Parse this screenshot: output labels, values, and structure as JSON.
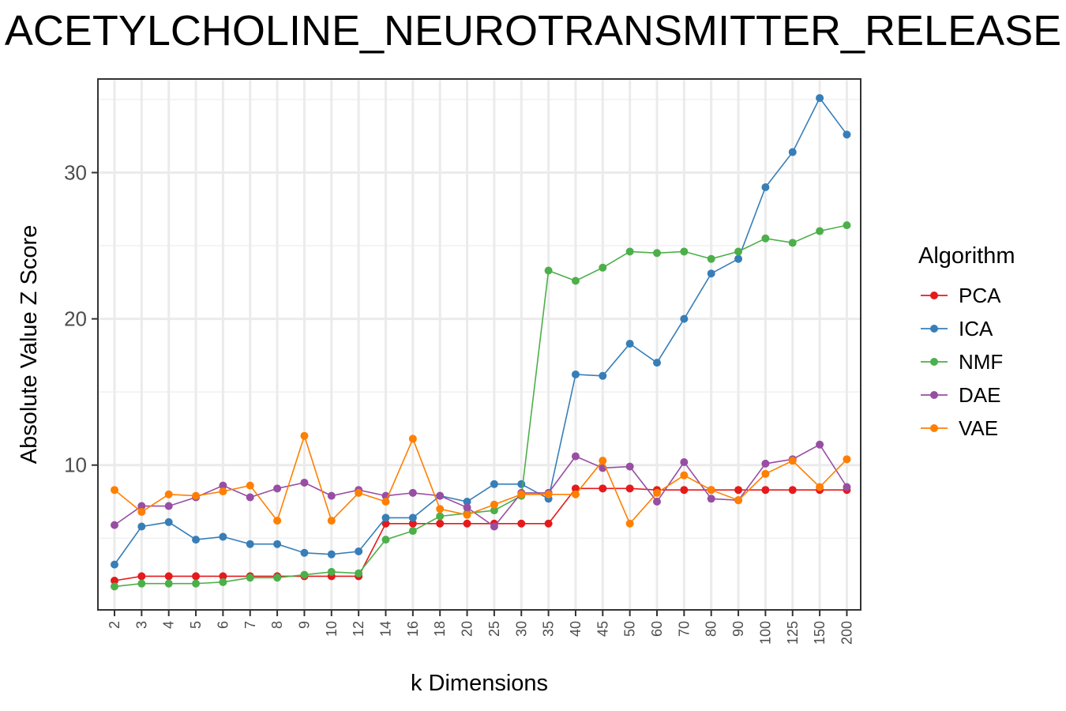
{
  "chart_data": {
    "type": "line",
    "title": "ACETYLCHOLINE_NEUROTRANSMITTER_RELEASE",
    "xlabel": "k Dimensions",
    "ylabel": "Absolute Value Z Score",
    "categories": [
      "2",
      "3",
      "4",
      "5",
      "6",
      "7",
      "8",
      "9",
      "10",
      "12",
      "14",
      "16",
      "18",
      "20",
      "25",
      "30",
      "35",
      "40",
      "45",
      "50",
      "60",
      "70",
      "80",
      "90",
      "100",
      "125",
      "150",
      "200"
    ],
    "ylim": [
      0.1,
      36.4
    ],
    "yticks": [
      10,
      20,
      30
    ],
    "grid": true,
    "legend": {
      "title": "Algorithm",
      "position": "right"
    },
    "series": [
      {
        "name": "PCA",
        "color": "#E41A1C",
        "values": [
          2.1,
          2.4,
          2.4,
          2.4,
          2.4,
          2.4,
          2.4,
          2.4,
          2.4,
          2.4,
          6.0,
          6.0,
          6.0,
          6.0,
          6.0,
          6.0,
          6.0,
          8.4,
          8.4,
          8.4,
          8.3,
          8.3,
          8.3,
          8.3,
          8.3,
          8.3,
          8.3,
          8.3
        ]
      },
      {
        "name": "ICA",
        "color": "#377EB8",
        "values": [
          3.2,
          5.8,
          6.1,
          4.9,
          5.1,
          4.6,
          4.6,
          4.0,
          3.9,
          4.1,
          6.4,
          6.4,
          7.9,
          7.5,
          8.7,
          8.7,
          7.7,
          16.2,
          16.1,
          18.3,
          17.0,
          20.0,
          23.1,
          24.1,
          29.0,
          31.4,
          35.1,
          32.6
        ]
      },
      {
        "name": "NMF",
        "color": "#4DAF4A",
        "values": [
          1.7,
          1.9,
          1.9,
          1.9,
          2.0,
          2.3,
          2.3,
          2.5,
          2.7,
          2.6,
          4.9,
          5.5,
          6.5,
          6.7,
          6.9,
          7.9,
          23.3,
          22.6,
          23.5,
          24.6,
          24.5,
          24.6,
          24.1,
          24.6,
          25.5,
          25.2,
          26.0,
          26.4
        ]
      },
      {
        "name": "DAE",
        "color": "#984EA3",
        "values": [
          5.9,
          7.2,
          7.2,
          7.8,
          8.6,
          7.8,
          8.4,
          8.8,
          7.9,
          8.3,
          7.9,
          8.1,
          7.9,
          7.1,
          5.8,
          8.1,
          8.1,
          10.6,
          9.8,
          9.9,
          7.5,
          10.2,
          7.7,
          7.6,
          10.1,
          10.4,
          11.4,
          8.5
        ]
      },
      {
        "name": "VAE",
        "color": "#FF7F00",
        "values": [
          8.3,
          6.8,
          8.0,
          7.9,
          8.2,
          8.6,
          6.2,
          12.0,
          6.2,
          8.1,
          7.5,
          11.8,
          7.0,
          6.6,
          7.3,
          8.0,
          8.0,
          8.0,
          10.3,
          6.0,
          8.1,
          9.3,
          8.3,
          7.6,
          9.4,
          10.3,
          8.5,
          10.4
        ]
      }
    ]
  }
}
